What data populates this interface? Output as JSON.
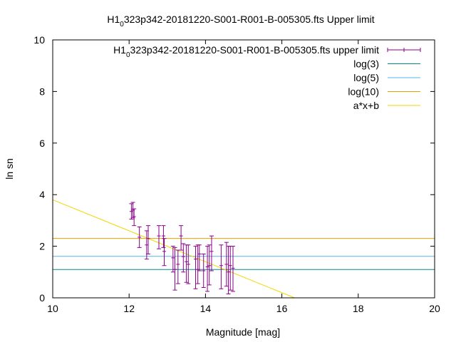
{
  "chart_data": {
    "type": "scatter",
    "title_main": "H1",
    "title_sub": "0",
    "title_rest": "323p342-20181220-S001-R001-B-005305.fts Upper limit",
    "xlabel": "Magnitude [mag]",
    "ylabel": "ln sn",
    "xlim": [
      10,
      20
    ],
    "ylim": [
      0,
      10
    ],
    "xticks": [
      "10",
      "12",
      "14",
      "16",
      "18",
      "20"
    ],
    "yticks": [
      "0",
      "2",
      "4",
      "6",
      "8",
      "10"
    ],
    "grid": false,
    "legend_position": "top-right",
    "legend": [
      {
        "main": "H1",
        "sub": "0",
        "rest": "323p342-20181220-S001-R001-B-005305.fts upper limit",
        "style": "errorbar",
        "color": "#8b008b"
      },
      {
        "label": "log(3)",
        "style": "line",
        "color": "#008b8b"
      },
      {
        "label": "log(5)",
        "style": "line",
        "color": "#56b4e9"
      },
      {
        "label": "log(10)",
        "style": "line",
        "color": "#e69f00"
      },
      {
        "label": "a*x+b",
        "style": "line",
        "color": "#f0d800"
      }
    ],
    "hlines": [
      {
        "name": "log(3)",
        "y": 1.0986
      },
      {
        "name": "log(5)",
        "y": 1.6094
      },
      {
        "name": "log(10)",
        "y": 2.3026
      }
    ],
    "fit_line": {
      "name": "a*x+b",
      "a": -0.6,
      "b": 9.8
    },
    "points": [
      {
        "x": 12.06,
        "y": 3.35,
        "lo": 3.05,
        "hi": 3.65
      },
      {
        "x": 12.1,
        "y": 3.4,
        "lo": 3.1,
        "hi": 3.7
      },
      {
        "x": 12.13,
        "y": 3.15,
        "lo": 2.8,
        "hi": 3.45
      },
      {
        "x": 12.27,
        "y": 2.35,
        "lo": 1.95,
        "hi": 2.75
      },
      {
        "x": 12.46,
        "y": 2.05,
        "lo": 1.5,
        "hi": 2.6
      },
      {
        "x": 12.5,
        "y": 2.3,
        "lo": 1.7,
        "hi": 2.8
      },
      {
        "x": 12.78,
        "y": 2.4,
        "lo": 1.9,
        "hi": 2.8
      },
      {
        "x": 12.9,
        "y": 2.4,
        "lo": 1.95,
        "hi": 2.8
      },
      {
        "x": 12.92,
        "y": 1.8,
        "lo": 1.25,
        "hi": 2.3
      },
      {
        "x": 13.15,
        "y": 1.55,
        "lo": 1.0,
        "hi": 2.0
      },
      {
        "x": 13.2,
        "y": 1.1,
        "lo": 0.3,
        "hi": 1.95
      },
      {
        "x": 13.28,
        "y": 1.3,
        "lo": 0.55,
        "hi": 1.85
      },
      {
        "x": 13.36,
        "y": 2.4,
        "lo": 1.85,
        "hi": 2.8
      },
      {
        "x": 13.42,
        "y": 1.6,
        "lo": 1.0,
        "hi": 2.1
      },
      {
        "x": 13.5,
        "y": 1.4,
        "lo": 0.6,
        "hi": 2.05
      },
      {
        "x": 13.55,
        "y": 1.3,
        "lo": 0.55,
        "hi": 2.05
      },
      {
        "x": 13.74,
        "y": 1.5,
        "lo": 0.35,
        "hi": 2.0
      },
      {
        "x": 13.8,
        "y": 1.1,
        "lo": 0.55,
        "hi": 2.05
      },
      {
        "x": 13.84,
        "y": 1.7,
        "lo": 1.05,
        "hi": 2.05
      },
      {
        "x": 13.95,
        "y": 1.05,
        "lo": 0.4,
        "hi": 1.7
      },
      {
        "x": 14.05,
        "y": 1.2,
        "lo": 0.25,
        "hi": 2.0
      },
      {
        "x": 14.1,
        "y": 1.25,
        "lo": 0.5,
        "hi": 2.05
      },
      {
        "x": 14.16,
        "y": 1.8,
        "lo": 1.05,
        "hi": 2.4
      },
      {
        "x": 14.41,
        "y": 1.25,
        "lo": 0.35,
        "hi": 2.05
      },
      {
        "x": 14.55,
        "y": 1.3,
        "lo": 0.45,
        "hi": 2.15
      },
      {
        "x": 14.6,
        "y": 1.0,
        "lo": 0.15,
        "hi": 2.0
      },
      {
        "x": 14.65,
        "y": 1.25,
        "lo": 0.3,
        "hi": 2.0
      },
      {
        "x": 14.72,
        "y": 1.15,
        "lo": 0.25,
        "hi": 2.0
      }
    ]
  }
}
